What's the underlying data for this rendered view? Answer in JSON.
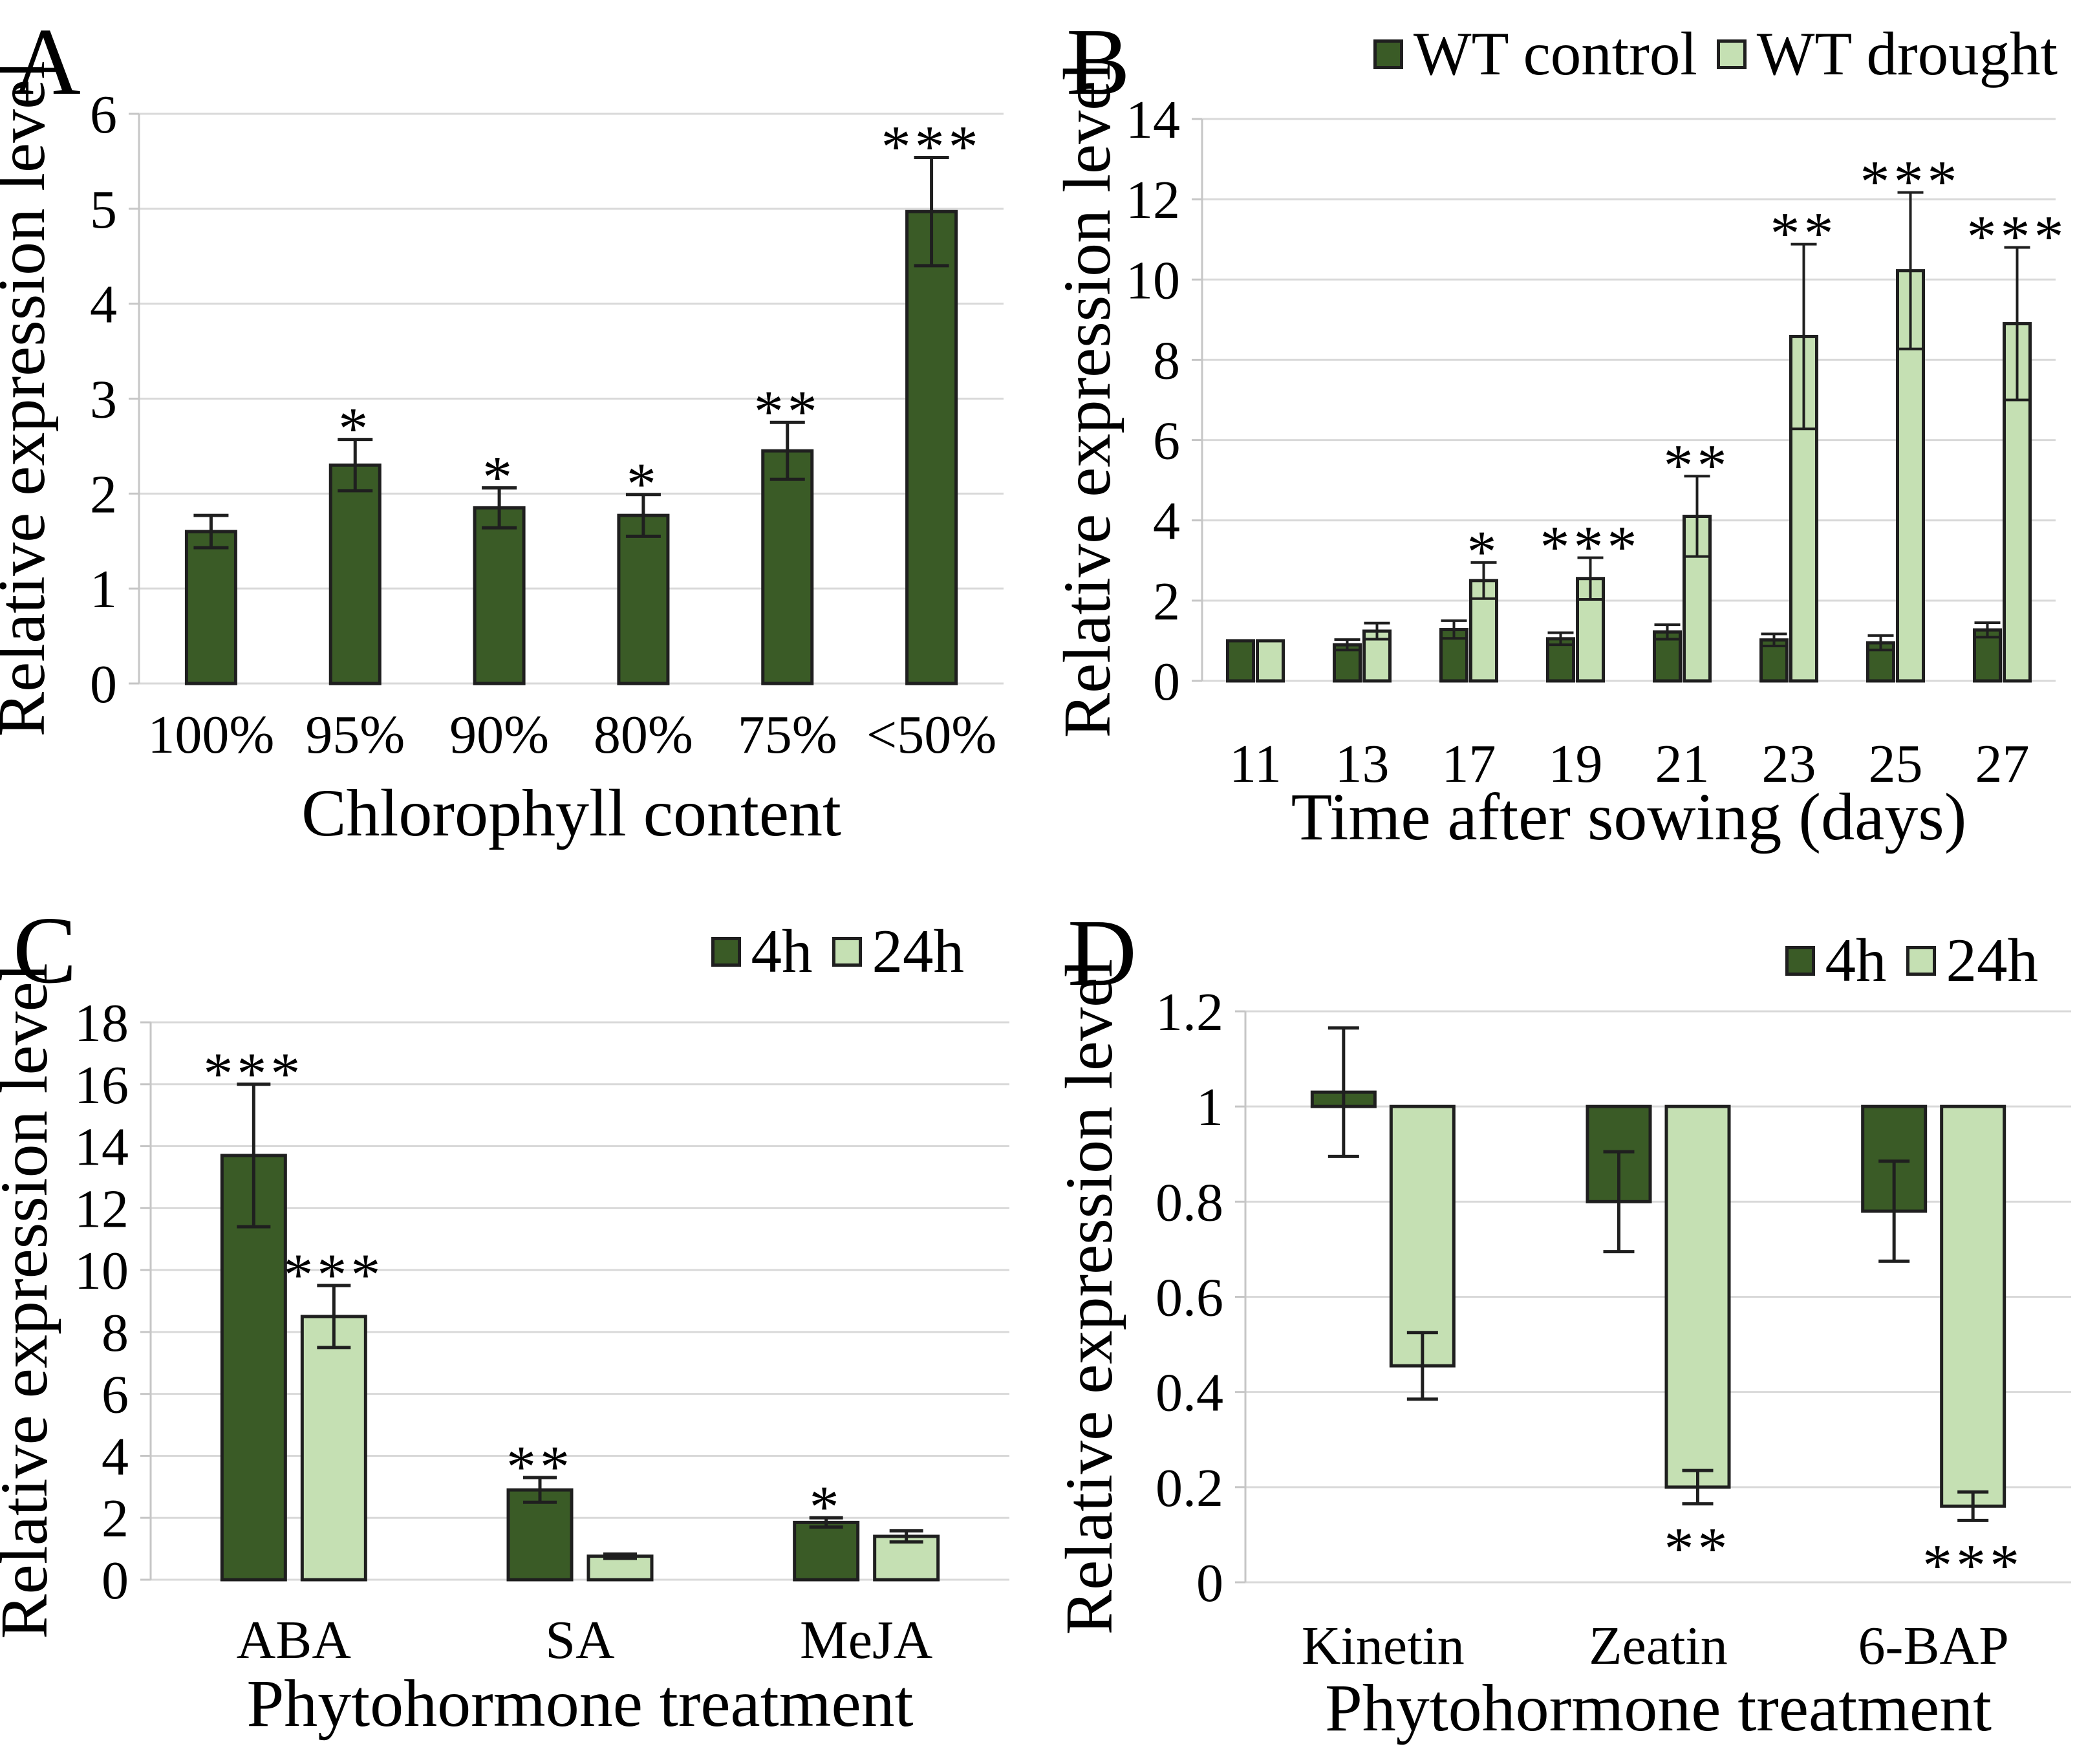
{
  "figure": {
    "background": "#ffffff",
    "panel_letters": [
      "A",
      "B",
      "C",
      "D"
    ]
  },
  "colors": {
    "dark_green": "#3a5b26",
    "light_green": "#c5e0b3",
    "bar_border": "#1f1f1f",
    "error_bar": "#1f1f1f",
    "gridline": "#d9d9d9",
    "axis_line": "#c6c6c6",
    "text": "#000000"
  },
  "chart_data": [
    {
      "id": "A",
      "type": "bar",
      "title": "",
      "xlabel": "Chlorophyll content",
      "ylabel": "Relative expression level",
      "ylim": [
        0,
        6
      ],
      "ystep": 1,
      "bar_base": 0,
      "grid": true,
      "legend_position": null,
      "categories": [
        "100%",
        "95%",
        "90%",
        "80%",
        "75%",
        "<50%"
      ],
      "series": [
        {
          "name": "",
          "color_key": "dark_green",
          "values": [
            1.6,
            2.3,
            1.85,
            1.77,
            2.45,
            4.97
          ],
          "errors": [
            0.17,
            0.27,
            0.21,
            0.22,
            0.3,
            0.57
          ],
          "stars": [
            "",
            "*",
            "*",
            "*",
            "**",
            "***"
          ]
        }
      ]
    },
    {
      "id": "B",
      "type": "bar",
      "title": "",
      "xlabel": "Time after sowing (days)",
      "ylabel": "Relative expression level",
      "ylim": [
        0,
        14
      ],
      "ystep": 2,
      "bar_base": 0,
      "grid": true,
      "legend_position": "top-right",
      "categories": [
        "11",
        "13",
        "17",
        "19",
        "21",
        "23",
        "25",
        "27"
      ],
      "series": [
        {
          "name": "WT control",
          "color_key": "dark_green",
          "values": [
            1.0,
            0.9,
            1.28,
            1.05,
            1.22,
            1.02,
            0.95,
            1.27
          ],
          "errors": [
            0,
            0.13,
            0.22,
            0.15,
            0.18,
            0.15,
            0.18,
            0.18
          ],
          "stars": [
            "",
            "",
            "",
            "",
            "",
            "",
            "",
            ""
          ]
        },
        {
          "name": "WT drought",
          "color_key": "light_green",
          "values": [
            1.0,
            1.24,
            2.5,
            2.55,
            4.1,
            8.58,
            10.22,
            8.9
          ],
          "errors": [
            0,
            0.2,
            0.45,
            0.52,
            1.0,
            2.3,
            1.95,
            1.9
          ],
          "stars": [
            "",
            "",
            "*",
            "***",
            "**",
            "**",
            "***",
            "***"
          ]
        }
      ]
    },
    {
      "id": "C",
      "type": "bar",
      "title": "",
      "xlabel": "Phytohormone treatment",
      "ylabel": "Relative expression level",
      "ylim": [
        0,
        18
      ],
      "ystep": 2,
      "bar_base": 0,
      "grid": true,
      "legend_position": "top-right",
      "categories": [
        "ABA",
        "SA",
        "MeJA"
      ],
      "series": [
        {
          "name": "4h",
          "color_key": "dark_green",
          "values": [
            13.7,
            2.9,
            1.85
          ],
          "errors": [
            2.3,
            0.4,
            0.15
          ],
          "stars": [
            "***",
            "**",
            "*"
          ]
        },
        {
          "name": "24h",
          "color_key": "light_green",
          "values": [
            8.5,
            0.76,
            1.4
          ],
          "errors": [
            1.0,
            0.07,
            0.18
          ],
          "stars": [
            "***",
            "",
            ""
          ]
        }
      ]
    },
    {
      "id": "D",
      "type": "bar",
      "title": "",
      "xlabel": "Phytohormone treatment",
      "ylabel": "Relative expression level",
      "ylim": [
        0,
        1.2
      ],
      "ystep": 0.2,
      "bar_base": 1,
      "grid": true,
      "legend_position": "top-right",
      "categories": [
        "Kinetin",
        "Zeatin",
        "6-BAP"
      ],
      "series": [
        {
          "name": "4h",
          "color_key": "dark_green",
          "values": [
            1.03,
            0.8,
            0.78
          ],
          "errors": [
            0.135,
            0.105,
            0.105
          ],
          "stars": [
            "",
            "",
            ""
          ]
        },
        {
          "name": "24h",
          "color_key": "light_green",
          "values": [
            0.455,
            0.2,
            0.16
          ],
          "errors": [
            0.07,
            0.035,
            0.03
          ],
          "stars": [
            "",
            "**",
            "***"
          ]
        }
      ]
    }
  ]
}
